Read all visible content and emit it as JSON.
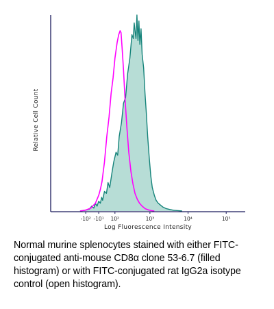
{
  "chart_data": {
    "type": "area",
    "xlabel": "Log Fluorescence Intensity",
    "ylabel": "Relative Cell Count",
    "x_scale": "biexponential",
    "x_tick_labels": [
      {
        "value": -100,
        "label": "-10²"
      },
      {
        "value": -10,
        "label": "-10¹"
      },
      {
        "value": 100,
        "label": "10²"
      },
      {
        "value": 1000,
        "label": "10³"
      },
      {
        "value": 10000,
        "label": "10⁴"
      },
      {
        "value": 100000,
        "label": "10⁵"
      }
    ],
    "xlim": [
      -1000,
      316000
    ],
    "ylim": [
      0,
      100
    ],
    "grid": false,
    "legend": "none",
    "series": [
      {
        "style": "filled",
        "color": "#5fb4ab",
        "fill": "#b7ddd6",
        "edge": "#15837a",
        "points": [
          [
            -155,
            0
          ],
          [
            -100,
            0.5
          ],
          [
            -70,
            1.0
          ],
          [
            -55,
            2.5
          ],
          [
            -40,
            1.5
          ],
          [
            -30,
            4.0
          ],
          [
            -20,
            2.5
          ],
          [
            -10,
            5.0
          ],
          [
            0,
            4.0
          ],
          [
            8,
            7.0
          ],
          [
            14,
            5.5
          ],
          [
            25,
            10.0
          ],
          [
            38,
            9.0
          ],
          [
            48,
            14.5
          ],
          [
            60,
            12.0
          ],
          [
            75,
            19.0
          ],
          [
            90,
            25.0
          ],
          [
            110,
            30.0
          ],
          [
            125,
            28.5
          ],
          [
            140,
            38.0
          ],
          [
            165,
            45.0
          ],
          [
            190,
            55.0
          ],
          [
            220,
            58.0
          ],
          [
            250,
            70.0
          ],
          [
            290,
            78.0
          ],
          [
            330,
            90.0
          ],
          [
            360,
            88.0
          ],
          [
            380,
            96.0
          ],
          [
            400,
            92.0
          ],
          [
            425,
            88.0
          ],
          [
            450,
            100.0
          ],
          [
            480,
            87.0
          ],
          [
            510,
            97.0
          ],
          [
            540,
            85.0
          ],
          [
            580,
            93.0
          ],
          [
            620,
            80.0
          ],
          [
            680,
            73.0
          ],
          [
            740,
            60.0
          ],
          [
            800,
            50.0
          ],
          [
            870,
            38.0
          ],
          [
            950,
            28.0
          ],
          [
            1050,
            18.0
          ],
          [
            1150,
            12.0
          ],
          [
            1300,
            8.0
          ],
          [
            1450,
            5.5
          ],
          [
            1650,
            4.0
          ],
          [
            1900,
            3.0
          ],
          [
            2200,
            2.0
          ],
          [
            2700,
            1.2
          ],
          [
            3300,
            0.8
          ],
          [
            4200,
            0.4
          ],
          [
            5500,
            0.2
          ],
          [
            7000,
            0
          ]
        ]
      },
      {
        "style": "open",
        "color": "#ff00ff",
        "points": [
          [
            -155,
            0
          ],
          [
            -100,
            0.5
          ],
          [
            -60,
            1.5
          ],
          [
            -30,
            4.0
          ],
          [
            -10,
            8.0
          ],
          [
            0,
            11.0
          ],
          [
            10,
            15.0
          ],
          [
            25,
            25.0
          ],
          [
            40,
            38.0
          ],
          [
            55,
            48.0
          ],
          [
            70,
            60.0
          ],
          [
            85,
            68.0
          ],
          [
            100,
            78.0
          ],
          [
            110,
            82.0
          ],
          [
            120,
            86.0
          ],
          [
            135,
            90.0
          ],
          [
            150,
            92.0
          ],
          [
            160,
            91.0
          ],
          [
            175,
            82.0
          ],
          [
            190,
            72.0
          ],
          [
            210,
            58.0
          ],
          [
            240,
            42.0
          ],
          [
            270,
            30.0
          ],
          [
            310,
            20.0
          ],
          [
            350,
            14.0
          ],
          [
            400,
            9.0
          ],
          [
            460,
            6.0
          ],
          [
            530,
            4.0
          ],
          [
            620,
            2.5
          ],
          [
            750,
            1.2
          ],
          [
            900,
            0.6
          ],
          [
            1100,
            0.2
          ],
          [
            1300,
            0
          ]
        ]
      }
    ]
  },
  "caption": "Normal murine splenocytes stained with either FITC-conjugated anti-mouse CD8α clone 53-6.7 (filled histogram) or with FITC-conjugated rat IgG2a isotype control (open histogram).",
  "colors": {
    "axis": "#1a1a5c",
    "filled_fill": "#b7ddd6",
    "filled_edge": "#15837a",
    "open_line": "#ff00ff"
  }
}
